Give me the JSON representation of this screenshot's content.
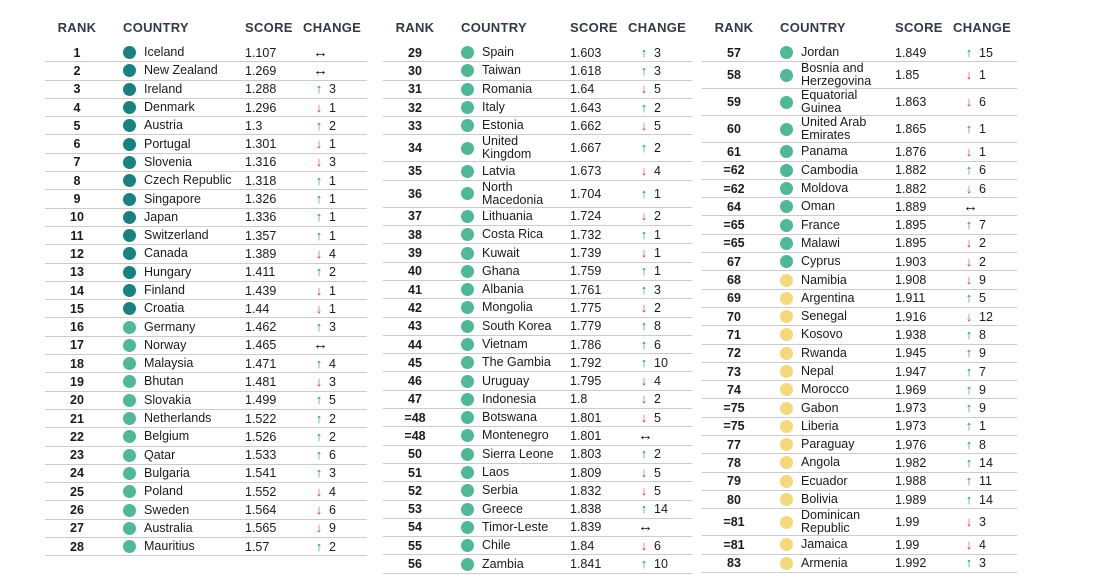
{
  "table": {
    "headers": [
      "RANK",
      "COUNTRY",
      "SCORE",
      "CHANGE"
    ],
    "tier_colors": {
      "very_high": "#1a8080",
      "high": "#4fb897",
      "medium": "#f4d87c"
    },
    "change_colors": {
      "up": "#13888b",
      "down": "#d23a31",
      "same": "#111111"
    },
    "arrow_glyphs": {
      "up": "↑",
      "down": "↓",
      "same": "↔"
    },
    "text_colors": {
      "header": "#333a45",
      "body": "#1b1b1b",
      "divider": "#cbcbcb"
    },
    "blocks": [
      {
        "rows": [
          {
            "rank": "1",
            "country": "Iceland",
            "score": "1.107",
            "dir": "same",
            "val": null,
            "tier": "very_high"
          },
          {
            "rank": "2",
            "country": "New Zealand",
            "score": "1.269",
            "dir": "same",
            "val": null,
            "tier": "very_high"
          },
          {
            "rank": "3",
            "country": "Ireland",
            "score": "1.288",
            "dir": "up",
            "val": "3",
            "tier": "very_high"
          },
          {
            "rank": "4",
            "country": "Denmark",
            "score": "1.296",
            "dir": "down",
            "val": "1",
            "tier": "very_high"
          },
          {
            "rank": "5",
            "country": "Austria",
            "score": "1.3",
            "dir": "up",
            "val": "2",
            "tier": "very_high"
          },
          {
            "rank": "6",
            "country": "Portugal",
            "score": "1.301",
            "dir": "down",
            "val": "1",
            "tier": "very_high"
          },
          {
            "rank": "7",
            "country": "Slovenia",
            "score": "1.316",
            "dir": "down",
            "val": "3",
            "tier": "very_high"
          },
          {
            "rank": "8",
            "country": "Czech Republic",
            "score": "1.318",
            "dir": "up",
            "val": "1",
            "tier": "very_high"
          },
          {
            "rank": "9",
            "country": "Singapore",
            "score": "1.326",
            "dir": "up",
            "val": "1",
            "tier": "very_high"
          },
          {
            "rank": "10",
            "country": "Japan",
            "score": "1.336",
            "dir": "up",
            "val": "1",
            "tier": "very_high"
          },
          {
            "rank": "11",
            "country": "Switzerland",
            "score": "1.357",
            "dir": "up",
            "val": "1",
            "tier": "very_high"
          },
          {
            "rank": "12",
            "country": "Canada",
            "score": "1.389",
            "dir": "down",
            "val": "4",
            "tier": "very_high"
          },
          {
            "rank": "13",
            "country": "Hungary",
            "score": "1.411",
            "dir": "up",
            "val": "2",
            "tier": "very_high"
          },
          {
            "rank": "14",
            "country": "Finland",
            "score": "1.439",
            "dir": "down",
            "val": "1",
            "tier": "very_high"
          },
          {
            "rank": "15",
            "country": "Croatia",
            "score": "1.44",
            "dir": "down",
            "val": "1",
            "tier": "very_high"
          },
          {
            "rank": "16",
            "country": "Germany",
            "score": "1.462",
            "dir": "up",
            "val": "3",
            "tier": "high"
          },
          {
            "rank": "17",
            "country": "Norway",
            "score": "1.465",
            "dir": "same",
            "val": null,
            "tier": "high"
          },
          {
            "rank": "18",
            "country": "Malaysia",
            "score": "1.471",
            "dir": "up",
            "val": "4",
            "tier": "high"
          },
          {
            "rank": "19",
            "country": "Bhutan",
            "score": "1.481",
            "dir": "down",
            "val": "3",
            "tier": "high"
          },
          {
            "rank": "20",
            "country": "Slovakia",
            "score": "1.499",
            "dir": "up",
            "val": "5",
            "tier": "high"
          },
          {
            "rank": "21",
            "country": "Netherlands",
            "score": "1.522",
            "dir": "up",
            "val": "2",
            "tier": "high"
          },
          {
            "rank": "22",
            "country": "Belgium",
            "score": "1.526",
            "dir": "up",
            "val": "2",
            "tier": "high"
          },
          {
            "rank": "23",
            "country": "Qatar",
            "score": "1.533",
            "dir": "up",
            "val": "6",
            "tier": "high"
          },
          {
            "rank": "24",
            "country": "Bulgaria",
            "score": "1.541",
            "dir": "up",
            "val": "3",
            "tier": "high"
          },
          {
            "rank": "25",
            "country": "Poland",
            "score": "1.552",
            "dir": "down",
            "val": "4",
            "tier": "high"
          },
          {
            "rank": "26",
            "country": "Sweden",
            "score": "1.564",
            "dir": "down",
            "val": "6",
            "tier": "high"
          },
          {
            "rank": "27",
            "country": "Australia",
            "score": "1.565",
            "dir": "down",
            "val": "9",
            "tier": "high"
          },
          {
            "rank": "28",
            "country": "Mauritius",
            "score": "1.57",
            "dir": "up",
            "val": "2",
            "tier": "high"
          }
        ]
      },
      {
        "rows": [
          {
            "rank": "29",
            "country": "Spain",
            "score": "1.603",
            "dir": "up",
            "val": "3",
            "tier": "high"
          },
          {
            "rank": "30",
            "country": "Taiwan",
            "score": "1.618",
            "dir": "up",
            "val": "3",
            "tier": "high"
          },
          {
            "rank": "31",
            "country": "Romania",
            "score": "1.64",
            "dir": "down",
            "val": "5",
            "tier": "high"
          },
          {
            "rank": "32",
            "country": "Italy",
            "score": "1.643",
            "dir": "up",
            "val": "2",
            "tier": "high"
          },
          {
            "rank": "33",
            "country": "Estonia",
            "score": "1.662",
            "dir": "down",
            "val": "5",
            "tier": "high"
          },
          {
            "rank": "34",
            "country": "United Kingdom",
            "score": "1.667",
            "dir": "up",
            "val": "2",
            "tier": "high"
          },
          {
            "rank": "35",
            "country": "Latvia",
            "score": "1.673",
            "dir": "down",
            "val": "4",
            "tier": "high"
          },
          {
            "rank": "36",
            "country": "North Macedonia",
            "score": "1.704",
            "dir": "up",
            "val": "1",
            "tier": "high"
          },
          {
            "rank": "37",
            "country": "Lithuania",
            "score": "1.724",
            "dir": "down",
            "val": "2",
            "tier": "high"
          },
          {
            "rank": "38",
            "country": "Costa Rica",
            "score": "1.732",
            "dir": "up",
            "val": "1",
            "tier": "high"
          },
          {
            "rank": "39",
            "country": "Kuwait",
            "score": "1.739",
            "dir": "down",
            "val": "1",
            "tier": "high"
          },
          {
            "rank": "40",
            "country": "Ghana",
            "score": "1.759",
            "dir": "up",
            "val": "1",
            "tier": "high"
          },
          {
            "rank": "41",
            "country": "Albania",
            "score": "1.761",
            "dir": "up",
            "val": "3",
            "tier": "high"
          },
          {
            "rank": "42",
            "country": "Mongolia",
            "score": "1.775",
            "dir": "down",
            "val": "2",
            "tier": "high"
          },
          {
            "rank": "43",
            "country": "South Korea",
            "score": "1.779",
            "dir": "up",
            "val": "8",
            "tier": "high"
          },
          {
            "rank": "44",
            "country": "Vietnam",
            "score": "1.786",
            "dir": "up",
            "val": "6",
            "tier": "high"
          },
          {
            "rank": "45",
            "country": "The Gambia",
            "score": "1.792",
            "dir": "up",
            "val": "10",
            "tier": "high"
          },
          {
            "rank": "46",
            "country": "Uruguay",
            "score": "1.795",
            "dir": "down",
            "val": "4",
            "tier": "high"
          },
          {
            "rank": "47",
            "country": "Indonesia",
            "score": "1.8",
            "dir": "down",
            "val": "2",
            "tier": "high"
          },
          {
            "rank": "=48",
            "country": "Botswana",
            "score": "1.801",
            "dir": "down",
            "val": "5",
            "tier": "high"
          },
          {
            "rank": "=48",
            "country": "Montenegro",
            "score": "1.801",
            "dir": "same",
            "val": null,
            "tier": "high"
          },
          {
            "rank": "50",
            "country": "Sierra Leone",
            "score": "1.803",
            "dir": "up",
            "val": "2",
            "tier": "high"
          },
          {
            "rank": "51",
            "country": "Laos",
            "score": "1.809",
            "dir": "down",
            "val": "5",
            "tier": "high"
          },
          {
            "rank": "52",
            "country": "Serbia",
            "score": "1.832",
            "dir": "down",
            "val": "5",
            "tier": "high"
          },
          {
            "rank": "53",
            "country": "Greece",
            "score": "1.838",
            "dir": "up",
            "val": "14",
            "tier": "high"
          },
          {
            "rank": "54",
            "country": "Timor-Leste",
            "score": "1.839",
            "dir": "same",
            "val": null,
            "tier": "high"
          },
          {
            "rank": "55",
            "country": "Chile",
            "score": "1.84",
            "dir": "down",
            "val": "6",
            "tier": "high"
          },
          {
            "rank": "56",
            "country": "Zambia",
            "score": "1.841",
            "dir": "up",
            "val": "10",
            "tier": "high"
          }
        ]
      },
      {
        "rows": [
          {
            "rank": "57",
            "country": "Jordan",
            "score": "1.849",
            "dir": "up",
            "val": "15",
            "tier": "high"
          },
          {
            "rank": "58",
            "country": "Bosnia and Herzegovina",
            "score": "1.85",
            "dir": "down",
            "val": "1",
            "tier": "high"
          },
          {
            "rank": "59",
            "country": "Equatorial Guinea",
            "score": "1.863",
            "dir": "down",
            "val": "6",
            "tier": "high"
          },
          {
            "rank": "60",
            "country": "United Arab Emirates",
            "score": "1.865",
            "dir": "up",
            "val": "1",
            "tier": "high"
          },
          {
            "rank": "61",
            "country": "Panama",
            "score": "1.876",
            "dir": "down",
            "val": "1",
            "tier": "high"
          },
          {
            "rank": "=62",
            "country": "Cambodia",
            "score": "1.882",
            "dir": "up",
            "val": "6",
            "tier": "high"
          },
          {
            "rank": "=62",
            "country": "Moldova",
            "score": "1.882",
            "dir": "down",
            "val": "6",
            "tier": "high"
          },
          {
            "rank": "64",
            "country": "Oman",
            "score": "1.889",
            "dir": "same",
            "val": null,
            "tier": "high"
          },
          {
            "rank": "=65",
            "country": "France",
            "score": "1.895",
            "dir": "up",
            "val": "7",
            "tier": "high"
          },
          {
            "rank": "=65",
            "country": "Malawi",
            "score": "1.895",
            "dir": "down",
            "val": "2",
            "tier": "high"
          },
          {
            "rank": "67",
            "country": "Cyprus",
            "score": "1.903",
            "dir": "down",
            "val": "2",
            "tier": "high"
          },
          {
            "rank": "68",
            "country": "Namibia",
            "score": "1.908",
            "dir": "down",
            "val": "9",
            "tier": "medium"
          },
          {
            "rank": "69",
            "country": "Argentina",
            "score": "1.911",
            "dir": "up",
            "val": "5",
            "tier": "medium"
          },
          {
            "rank": "70",
            "country": "Senegal",
            "score": "1.916",
            "dir": "down",
            "val": "12",
            "tier": "medium"
          },
          {
            "rank": "71",
            "country": "Kosovo",
            "score": "1.938",
            "dir": "up",
            "val": "8",
            "tier": "medium"
          },
          {
            "rank": "72",
            "country": "Rwanda",
            "score": "1.945",
            "dir": "up",
            "val": "9",
            "tier": "medium"
          },
          {
            "rank": "73",
            "country": "Nepal",
            "score": "1.947",
            "dir": "up",
            "val": "7",
            "tier": "medium"
          },
          {
            "rank": "74",
            "country": "Morocco",
            "score": "1.969",
            "dir": "up",
            "val": "9",
            "tier": "medium"
          },
          {
            "rank": "=75",
            "country": "Gabon",
            "score": "1.973",
            "dir": "up",
            "val": "9",
            "tier": "medium"
          },
          {
            "rank": "=75",
            "country": "Liberia",
            "score": "1.973",
            "dir": "up",
            "val": "1",
            "tier": "medium"
          },
          {
            "rank": "77",
            "country": "Paraguay",
            "score": "1.976",
            "dir": "up",
            "val": "8",
            "tier": "medium"
          },
          {
            "rank": "78",
            "country": "Angola",
            "score": "1.982",
            "dir": "up",
            "val": "14",
            "tier": "medium"
          },
          {
            "rank": "79",
            "country": "Ecuador",
            "score": "1.988",
            "dir": "up",
            "val": "11",
            "tier": "medium"
          },
          {
            "rank": "80",
            "country": "Bolivia",
            "score": "1.989",
            "dir": "up",
            "val": "14",
            "tier": "medium"
          },
          {
            "rank": "=81",
            "country": "Dominican Republic",
            "score": "1.99",
            "dir": "down",
            "val": "3",
            "tier": "medium"
          },
          {
            "rank": "=81",
            "country": "Jamaica",
            "score": "1.99",
            "dir": "down",
            "val": "4",
            "tier": "medium"
          },
          {
            "rank": "83",
            "country": "Armenia",
            "score": "1.992",
            "dir": "up",
            "val": "3",
            "tier": "medium"
          }
        ]
      }
    ]
  }
}
